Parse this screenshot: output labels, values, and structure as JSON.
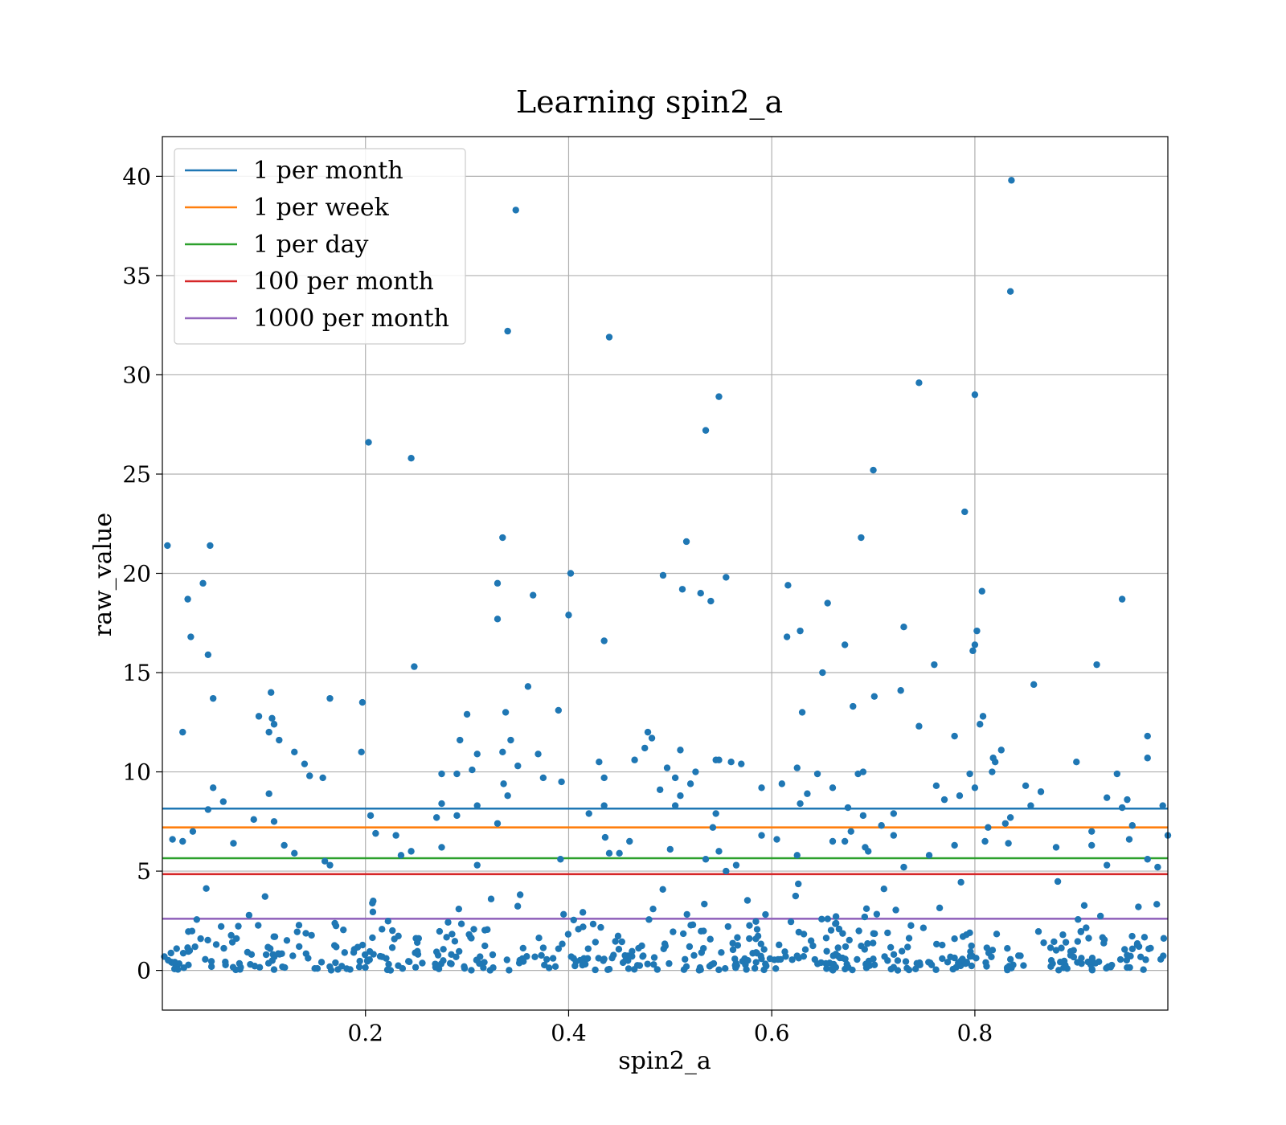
{
  "chart_data": {
    "type": "scatter",
    "title": "Learning spin2_a",
    "xlabel": "spin2_a",
    "ylabel": "raw_value",
    "xlim": [
      0.0,
      0.99
    ],
    "ylim": [
      -2,
      42
    ],
    "xticks": [
      0.2,
      0.4,
      0.6,
      0.8
    ],
    "xtick_labels": [
      "0.2",
      "0.4",
      "0.6",
      "0.8"
    ],
    "yticks": [
      0,
      5,
      10,
      15,
      20,
      25,
      30,
      35,
      40
    ],
    "ytick_labels": [
      "0",
      "5",
      "10",
      "15",
      "20",
      "25",
      "30",
      "35",
      "40"
    ],
    "grid": true,
    "legend_position": "top-left",
    "point_color": "#1f77b4",
    "hlines": [
      {
        "label": "1 per month",
        "y": 8.15,
        "color": "#1f77b4"
      },
      {
        "label": "1 per week",
        "y": 7.2,
        "color": "#ff7f0e"
      },
      {
        "label": "1 per day",
        "y": 5.65,
        "color": "#2ca02c"
      },
      {
        "label": "100 per month",
        "y": 4.85,
        "color": "#d62728"
      },
      {
        "label": "1000 per month",
        "y": 2.6,
        "color": "#9467bd"
      }
    ],
    "points": [
      [
        0.005,
        21.4
      ],
      [
        0.02,
        12.0
      ],
      [
        0.025,
        18.7
      ],
      [
        0.028,
        16.8
      ],
      [
        0.04,
        19.5
      ],
      [
        0.045,
        15.9
      ],
      [
        0.047,
        21.4
      ],
      [
        0.05,
        13.7
      ],
      [
        0.05,
        9.2
      ],
      [
        0.045,
        8.1
      ],
      [
        0.06,
        8.5
      ],
      [
        0.01,
        6.6
      ],
      [
        0.02,
        6.5
      ],
      [
        0.03,
        7.0
      ],
      [
        0.07,
        6.4
      ],
      [
        0.095,
        12.8
      ],
      [
        0.107,
        14.0
      ],
      [
        0.108,
        12.7
      ],
      [
        0.11,
        12.4
      ],
      [
        0.105,
        12.0
      ],
      [
        0.115,
        11.6
      ],
      [
        0.13,
        11.0
      ],
      [
        0.14,
        10.4
      ],
      [
        0.145,
        9.8
      ],
      [
        0.158,
        9.7
      ],
      [
        0.165,
        13.7
      ],
      [
        0.105,
        8.9
      ],
      [
        0.11,
        7.5
      ],
      [
        0.09,
        7.6
      ],
      [
        0.12,
        6.3
      ],
      [
        0.13,
        5.9
      ],
      [
        0.16,
        5.5
      ],
      [
        0.165,
        5.3
      ],
      [
        0.196,
        11.0
      ],
      [
        0.197,
        13.5
      ],
      [
        0.203,
        26.6
      ],
      [
        0.205,
        7.8
      ],
      [
        0.21,
        6.9
      ],
      [
        0.245,
        25.8
      ],
      [
        0.248,
        15.3
      ],
      [
        0.23,
        6.8
      ],
      [
        0.235,
        5.8
      ],
      [
        0.245,
        6.0
      ],
      [
        0.275,
        9.9
      ],
      [
        0.29,
        9.9
      ],
      [
        0.293,
        11.6
      ],
      [
        0.3,
        12.9
      ],
      [
        0.305,
        10.1
      ],
      [
        0.31,
        10.9
      ],
      [
        0.275,
        8.4
      ],
      [
        0.27,
        7.7
      ],
      [
        0.29,
        7.8
      ],
      [
        0.31,
        8.3
      ],
      [
        0.275,
        6.2
      ],
      [
        0.31,
        5.3
      ],
      [
        0.33,
        19.5
      ],
      [
        0.33,
        17.7
      ],
      [
        0.335,
        21.8
      ],
      [
        0.34,
        32.2
      ],
      [
        0.348,
        38.3
      ],
      [
        0.338,
        13.0
      ],
      [
        0.343,
        11.6
      ],
      [
        0.335,
        11.0
      ],
      [
        0.35,
        10.3
      ],
      [
        0.36,
        14.3
      ],
      [
        0.365,
        18.9
      ],
      [
        0.37,
        10.9
      ],
      [
        0.375,
        9.7
      ],
      [
        0.39,
        13.1
      ],
      [
        0.393,
        9.5
      ],
      [
        0.33,
        7.4
      ],
      [
        0.336,
        9.4
      ],
      [
        0.34,
        8.8
      ],
      [
        0.392,
        5.6
      ],
      [
        0.4,
        17.9
      ],
      [
        0.402,
        20.0
      ],
      [
        0.435,
        16.6
      ],
      [
        0.44,
        31.9
      ],
      [
        0.43,
        10.5
      ],
      [
        0.435,
        9.7
      ],
      [
        0.435,
        8.3
      ],
      [
        0.42,
        7.9
      ],
      [
        0.436,
        6.7
      ],
      [
        0.44,
        5.9
      ],
      [
        0.45,
        5.9
      ],
      [
        0.46,
        6.5
      ],
      [
        0.465,
        10.6
      ],
      [
        0.475,
        11.2
      ],
      [
        0.478,
        12.0
      ],
      [
        0.482,
        11.7
      ],
      [
        0.49,
        9.1
      ],
      [
        0.493,
        19.9
      ],
      [
        0.497,
        10.2
      ],
      [
        0.505,
        9.7
      ],
      [
        0.51,
        11.1
      ],
      [
        0.512,
        19.2
      ],
      [
        0.516,
        21.6
      ],
      [
        0.52,
        9.4
      ],
      [
        0.525,
        10.0
      ],
      [
        0.53,
        19.0
      ],
      [
        0.535,
        27.2
      ],
      [
        0.54,
        18.6
      ],
      [
        0.545,
        10.6
      ],
      [
        0.548,
        28.9
      ],
      [
        0.548,
        10.6
      ],
      [
        0.555,
        19.8
      ],
      [
        0.56,
        10.5
      ],
      [
        0.57,
        10.4
      ],
      [
        0.51,
        8.8
      ],
      [
        0.505,
        8.3
      ],
      [
        0.5,
        6.1
      ],
      [
        0.545,
        7.9
      ],
      [
        0.542,
        7.2
      ],
      [
        0.548,
        6.0
      ],
      [
        0.555,
        5.0
      ],
      [
        0.565,
        5.3
      ],
      [
        0.535,
        5.6
      ],
      [
        0.59,
        9.2
      ],
      [
        0.61,
        9.4
      ],
      [
        0.615,
        16.8
      ],
      [
        0.616,
        19.4
      ],
      [
        0.628,
        17.1
      ],
      [
        0.63,
        13.0
      ],
      [
        0.625,
        10.2
      ],
      [
        0.635,
        8.9
      ],
      [
        0.645,
        9.9
      ],
      [
        0.65,
        15.0
      ],
      [
        0.655,
        18.5
      ],
      [
        0.66,
        9.2
      ],
      [
        0.672,
        16.4
      ],
      [
        0.68,
        13.3
      ],
      [
        0.685,
        9.9
      ],
      [
        0.688,
        21.8
      ],
      [
        0.69,
        10.0
      ],
      [
        0.7,
        25.2
      ],
      [
        0.701,
        13.8
      ],
      [
        0.59,
        6.8
      ],
      [
        0.605,
        6.6
      ],
      [
        0.625,
        5.8
      ],
      [
        0.628,
        8.4
      ],
      [
        0.66,
        6.5
      ],
      [
        0.672,
        6.5
      ],
      [
        0.675,
        8.2
      ],
      [
        0.678,
        7.0
      ],
      [
        0.69,
        7.8
      ],
      [
        0.692,
        6.2
      ],
      [
        0.695,
        6.0
      ],
      [
        0.708,
        7.3
      ],
      [
        0.72,
        7.9
      ],
      [
        0.727,
        14.1
      ],
      [
        0.73,
        17.3
      ],
      [
        0.745,
        12.3
      ],
      [
        0.745,
        29.6
      ],
      [
        0.76,
        15.4
      ],
      [
        0.762,
        9.3
      ],
      [
        0.77,
        8.6
      ],
      [
        0.78,
        11.8
      ],
      [
        0.785,
        8.8
      ],
      [
        0.79,
        23.1
      ],
      [
        0.795,
        9.9
      ],
      [
        0.798,
        16.1
      ],
      [
        0.8,
        29.0
      ],
      [
        0.8,
        16.4
      ],
      [
        0.802,
        17.1
      ],
      [
        0.8,
        9.2
      ],
      [
        0.805,
        12.4
      ],
      [
        0.808,
        12.8
      ],
      [
        0.807,
        19.1
      ],
      [
        0.81,
        6.5
      ],
      [
        0.813,
        7.2
      ],
      [
        0.817,
        10.0
      ],
      [
        0.818,
        10.7
      ],
      [
        0.82,
        10.5
      ],
      [
        0.826,
        11.1
      ],
      [
        0.83,
        7.4
      ],
      [
        0.833,
        6.4
      ],
      [
        0.835,
        34.2
      ],
      [
        0.836,
        39.8
      ],
      [
        0.835,
        7.7
      ],
      [
        0.72,
        6.8
      ],
      [
        0.73,
        5.2
      ],
      [
        0.755,
        5.8
      ],
      [
        0.78,
        6.3
      ],
      [
        0.85,
        9.3
      ],
      [
        0.855,
        8.3
      ],
      [
        0.858,
        14.4
      ],
      [
        0.865,
        9.0
      ],
      [
        0.88,
        6.2
      ],
      [
        0.9,
        10.5
      ],
      [
        0.915,
        7.0
      ],
      [
        0.92,
        15.4
      ],
      [
        0.93,
        8.7
      ],
      [
        0.94,
        9.9
      ],
      [
        0.945,
        18.7
      ],
      [
        0.945,
        8.2
      ],
      [
        0.95,
        8.6
      ],
      [
        0.955,
        7.3
      ],
      [
        0.97,
        11.8
      ],
      [
        0.97,
        10.7
      ],
      [
        0.985,
        8.3
      ],
      [
        0.99,
        6.8
      ],
      [
        0.915,
        6.3
      ],
      [
        0.93,
        5.3
      ],
      [
        0.952,
        6.6
      ],
      [
        0.97,
        5.6
      ],
      [
        0.98,
        5.2
      ]
    ],
    "dense_band": {
      "y_range": [
        0,
        4.8
      ],
      "count": 520,
      "note_seeded": true
    }
  }
}
